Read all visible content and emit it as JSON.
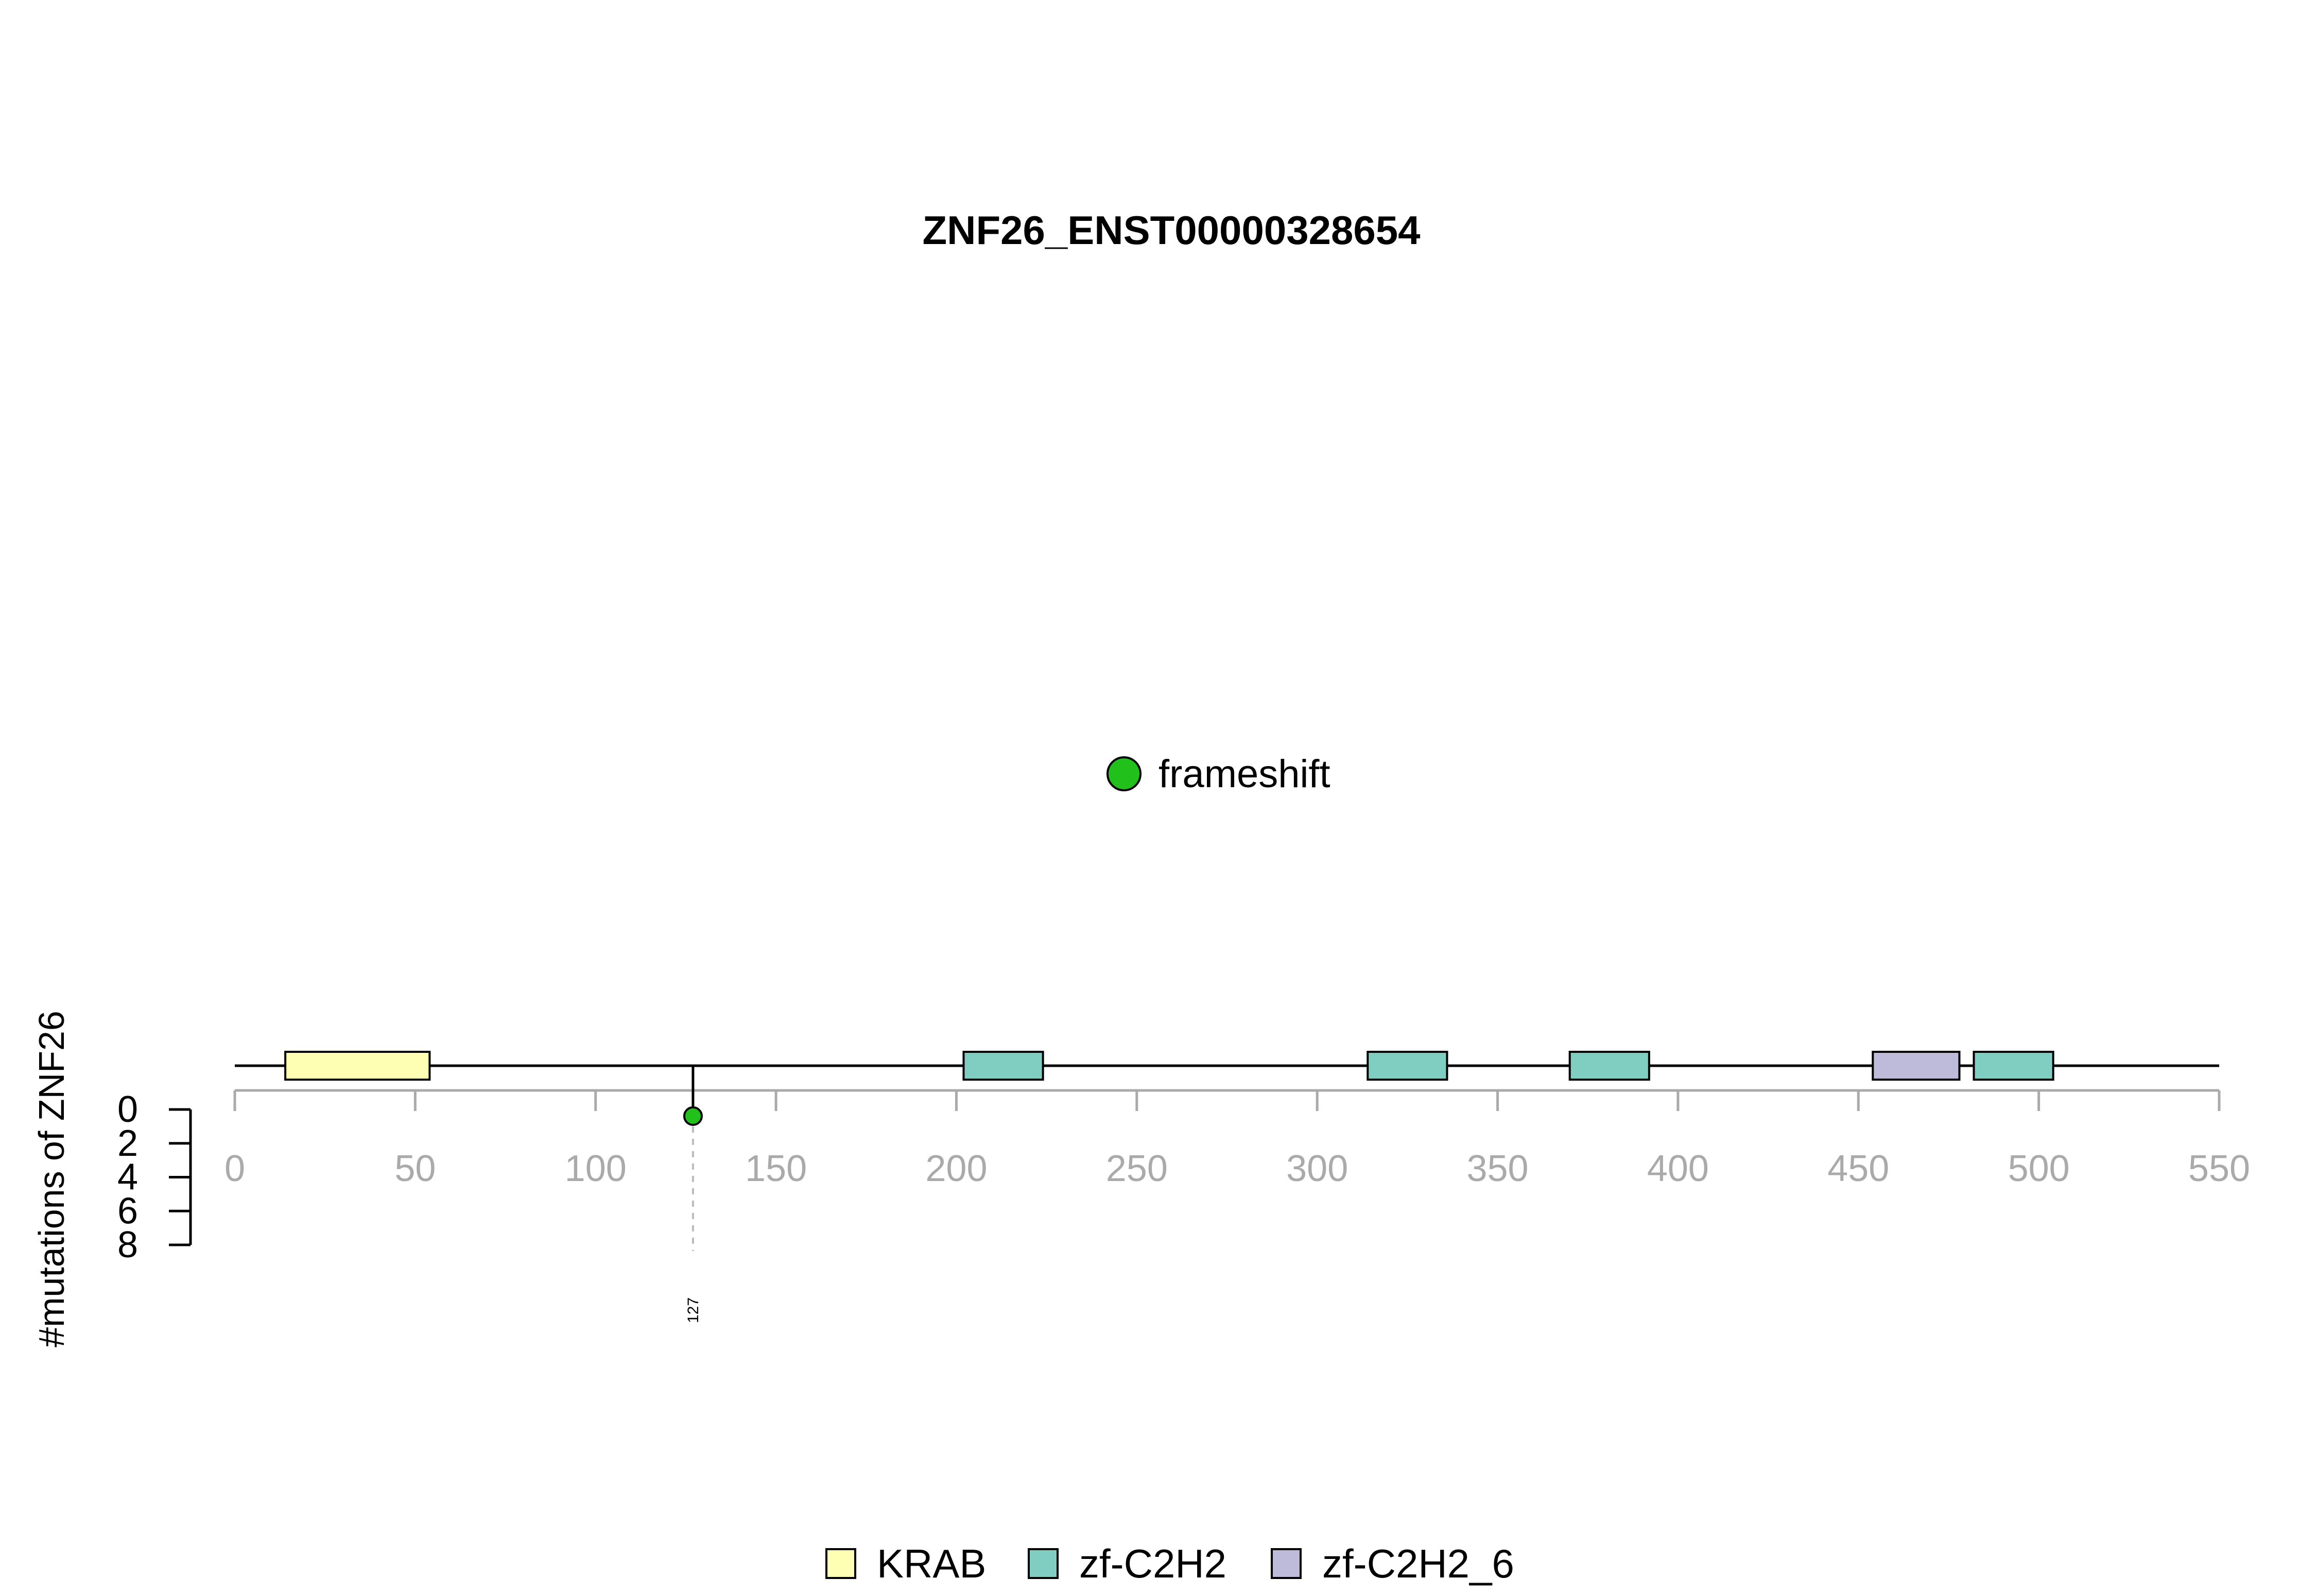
{
  "chart_data": {
    "type": "lollipop",
    "title": "ZNF26_ENST00000328654",
    "ylabel": "#mutations of ZNF26",
    "xlim": [
      0,
      550
    ],
    "x_ticks": [
      0,
      50,
      100,
      150,
      200,
      250,
      300,
      350,
      400,
      450,
      500,
      550
    ],
    "y_ticks": [
      0,
      2,
      4,
      6,
      8
    ],
    "protein_length": 550,
    "domains": [
      {
        "name": "KRAB",
        "start": 14,
        "end": 54,
        "color": "#FFFFB3"
      },
      {
        "name": "zf-C2H2",
        "start": 202,
        "end": 224,
        "color": "#80CDC1"
      },
      {
        "name": "zf-C2H2",
        "start": 314,
        "end": 336,
        "color": "#80CDC1"
      },
      {
        "name": "zf-C2H2",
        "start": 370,
        "end": 392,
        "color": "#80CDC1"
      },
      {
        "name": "zf-C2H2_6",
        "start": 454,
        "end": 478,
        "color": "#BEBADA"
      },
      {
        "name": "zf-C2H2",
        "start": 482,
        "end": 504,
        "color": "#80CDC1"
      }
    ],
    "mutations": [
      {
        "position": 127,
        "count": 1,
        "type": "frameshift",
        "label": "127",
        "color": "#22C01A"
      }
    ],
    "mutation_legend": [
      {
        "label": "frameshift",
        "color": "#22C01A"
      }
    ],
    "domain_legend": [
      {
        "label": "KRAB",
        "color": "#FFFFB3"
      },
      {
        "label": "zf-C2H2",
        "color": "#80CDC1"
      },
      {
        "label": "zf-C2H2_6",
        "color": "#BEBADA"
      }
    ]
  }
}
